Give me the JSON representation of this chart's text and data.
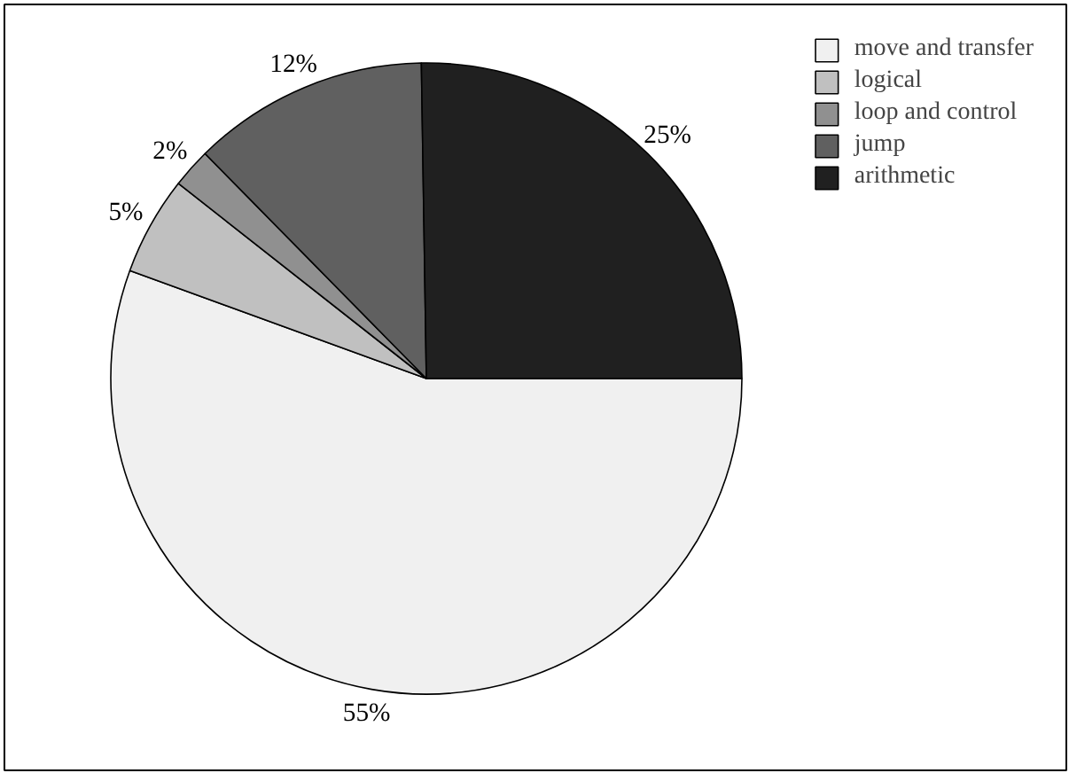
{
  "chart_data": {
    "type": "pie",
    "categories": [
      "move and transfer",
      "logical",
      "loop and control",
      "jump",
      "arithmetic"
    ],
    "values": [
      55,
      5,
      2,
      12,
      25
    ],
    "colors": [
      "#f0f0f0",
      "#c0c0c0",
      "#909090",
      "#606060",
      "#202020"
    ],
    "value_labels": [
      "55%",
      "5%",
      "2%",
      "12%",
      "25%"
    ],
    "legend": "top right"
  }
}
